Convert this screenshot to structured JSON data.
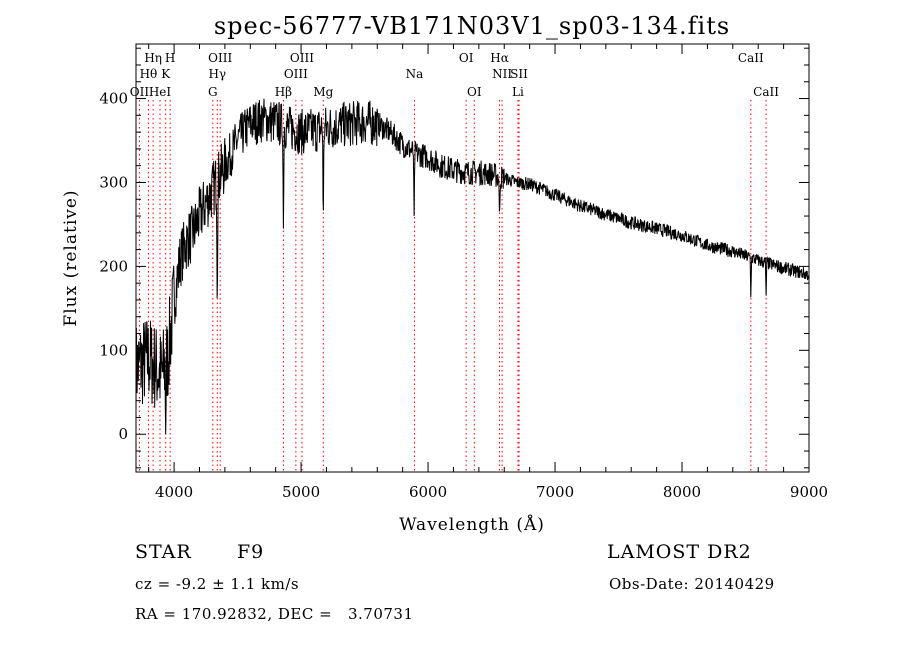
{
  "chart_data": {
    "type": "line",
    "title": "spec-56777-VB171N03V1_sp03-134.fits",
    "xlabel": "Wavelength (Å)",
    "ylabel": "Flux (relative)",
    "xlim": [
      3700,
      9000
    ],
    "ylim": [
      -45,
      465
    ],
    "xticks": [
      4000,
      5000,
      6000,
      7000,
      8000,
      9000
    ],
    "yticks": [
      0,
      100,
      200,
      300,
      400
    ],
    "grid": false,
    "line_color": "#000000",
    "marker_color": "#ff0000",
    "spectrum_anchors": {
      "x": [
        3700,
        3750,
        3800,
        3850,
        3900,
        3950,
        4000,
        4050,
        4100,
        4150,
        4200,
        4300,
        4400,
        4500,
        4600,
        4700,
        4800,
        4900,
        5000,
        5100,
        5200,
        5300,
        5400,
        5500,
        5600,
        5700,
        5800,
        5900,
        6000,
        6100,
        6200,
        6300,
        6400,
        6500,
        6600,
        6700,
        6800,
        6900,
        7000,
        7200,
        7400,
        7600,
        7800,
        8000,
        8200,
        8400,
        8600,
        8800,
        9000
      ],
      "y": [
        80,
        85,
        90,
        80,
        70,
        90,
        160,
        210,
        230,
        240,
        260,
        290,
        320,
        350,
        370,
        375,
        372,
        365,
        360,
        362,
        365,
        368,
        370,
        372,
        370,
        360,
        345,
        335,
        330,
        320,
        315,
        312,
        312,
        310,
        305,
        300,
        298,
        292,
        285,
        272,
        262,
        252,
        245,
        237,
        225,
        218,
        207,
        198,
        190
      ]
    },
    "spectrum_dips": [
      {
        "x": 3934,
        "y": 0
      },
      {
        "x": 4340,
        "y": 140
      },
      {
        "x": 4861,
        "y": 245
      },
      {
        "x": 5175,
        "y": 245
      },
      {
        "x": 5890,
        "y": 260
      },
      {
        "x": 6563,
        "y": 255
      },
      {
        "x": 8542,
        "y": 163
      },
      {
        "x": 8662,
        "y": 165
      }
    ],
    "lines": [
      {
        "name": "OII",
        "x": 3727,
        "row": 3
      },
      {
        "name": "Hθ",
        "x": 3798,
        "row": 2
      },
      {
        "name": "Hη",
        "x": 3835,
        "row": 1
      },
      {
        "name": "HeI",
        "x": 3889,
        "row": 3
      },
      {
        "name": "K",
        "x": 3934,
        "row": 2
      },
      {
        "name": "H",
        "x": 3969,
        "row": 1
      },
      {
        "name": "G",
        "x": 4305,
        "row": 3
      },
      {
        "name": "Hγ",
        "x": 4340,
        "row": 2
      },
      {
        "name": "OIII",
        "x": 4363,
        "row": 1
      },
      {
        "name": "Hβ",
        "x": 4861,
        "row": 3
      },
      {
        "name": "OIII",
        "x": 4959,
        "row": 2
      },
      {
        "name": "OIII",
        "x": 5007,
        "row": 1
      },
      {
        "name": "Mg",
        "x": 5175,
        "row": 3
      },
      {
        "name": "Na",
        "x": 5893,
        "row": 2
      },
      {
        "name": "OI",
        "x": 6300,
        "row": 1
      },
      {
        "name": "OI",
        "x": 6364,
        "row": 3
      },
      {
        "name": "Hα",
        "x": 6563,
        "row": 1
      },
      {
        "name": "NII",
        "x": 6583,
        "row": 2
      },
      {
        "name": "SII",
        "x": 6716,
        "row": 2
      },
      {
        "name": "Li",
        "x": 6708,
        "row": 3
      },
      {
        "name": "CaII",
        "x": 8542,
        "row": 1
      },
      {
        "name": "CaII",
        "x": 8662,
        "row": 3
      }
    ]
  },
  "info": {
    "object_type": "STAR",
    "subclass": "F9",
    "survey": "LAMOST DR2",
    "redshift": "cz = -9.2 ± 1.1 km/s",
    "obs_date": "Obs-Date: 20140429",
    "coords": "RA = 170.92832, DEC =   3.70731"
  }
}
